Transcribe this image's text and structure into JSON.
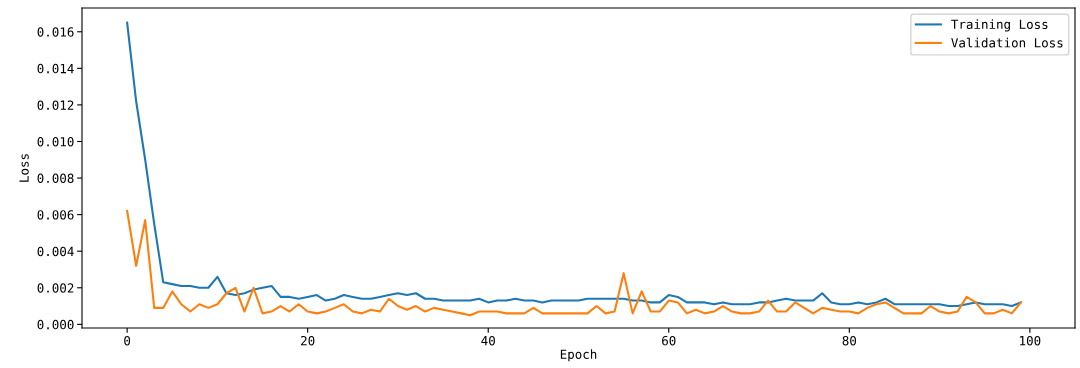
{
  "chart_data": {
    "type": "line",
    "xlabel": "Epoch",
    "ylabel": "Loss",
    "x": [
      0,
      1,
      2,
      3,
      4,
      5,
      6,
      7,
      8,
      9,
      10,
      11,
      12,
      13,
      14,
      15,
      16,
      17,
      18,
      19,
      20,
      21,
      22,
      23,
      24,
      25,
      26,
      27,
      28,
      29,
      30,
      31,
      32,
      33,
      34,
      35,
      36,
      37,
      38,
      39,
      40,
      41,
      42,
      43,
      44,
      45,
      46,
      47,
      48,
      49,
      50,
      51,
      52,
      53,
      54,
      55,
      56,
      57,
      58,
      59,
      60,
      61,
      62,
      63,
      64,
      65,
      66,
      67,
      68,
      69,
      70,
      71,
      72,
      73,
      74,
      75,
      76,
      77,
      78,
      79,
      80,
      81,
      82,
      83,
      84,
      85,
      86,
      87,
      88,
      89,
      90,
      91,
      92,
      93,
      94,
      95,
      96,
      97,
      98,
      99
    ],
    "series": [
      {
        "name": "Training Loss",
        "color": "#1f77b4",
        "values": [
          0.0165,
          0.0122,
          0.009,
          0.0055,
          0.0023,
          0.0022,
          0.0021,
          0.0021,
          0.002,
          0.002,
          0.0026,
          0.0017,
          0.0016,
          0.0017,
          0.0019,
          0.002,
          0.0021,
          0.0015,
          0.0015,
          0.0014,
          0.0015,
          0.0016,
          0.0013,
          0.0014,
          0.0016,
          0.0015,
          0.0014,
          0.0014,
          0.0015,
          0.0016,
          0.0017,
          0.0016,
          0.0017,
          0.0014,
          0.0014,
          0.0013,
          0.0013,
          0.0013,
          0.0013,
          0.0014,
          0.0012,
          0.0013,
          0.0013,
          0.0014,
          0.0013,
          0.0013,
          0.0012,
          0.0013,
          0.0013,
          0.0013,
          0.0013,
          0.0014,
          0.0014,
          0.0014,
          0.0014,
          0.0014,
          0.0013,
          0.0013,
          0.0012,
          0.0012,
          0.0016,
          0.0015,
          0.0012,
          0.0012,
          0.0012,
          0.0011,
          0.0012,
          0.0011,
          0.0011,
          0.0011,
          0.0012,
          0.0012,
          0.0013,
          0.0014,
          0.0013,
          0.0013,
          0.0013,
          0.0017,
          0.0012,
          0.0011,
          0.0011,
          0.0012,
          0.0011,
          0.0012,
          0.0014,
          0.0011,
          0.0011,
          0.0011,
          0.0011,
          0.0011,
          0.0011,
          0.001,
          0.001,
          0.0011,
          0.0012,
          0.0011,
          0.0011,
          0.0011,
          0.001,
          0.0012
        ]
      },
      {
        "name": "Validation Loss",
        "color": "#ff7f0e",
        "values": [
          0.0062,
          0.0032,
          0.0057,
          0.0009,
          0.0009,
          0.0018,
          0.0011,
          0.0007,
          0.0011,
          0.0009,
          0.0011,
          0.0017,
          0.002,
          0.0007,
          0.002,
          0.0006,
          0.0007,
          0.001,
          0.0007,
          0.0011,
          0.0007,
          0.0006,
          0.0007,
          0.0009,
          0.0011,
          0.0007,
          0.0006,
          0.0008,
          0.0007,
          0.0014,
          0.001,
          0.0008,
          0.001,
          0.0007,
          0.0009,
          0.0008,
          0.0007,
          0.0006,
          0.0005,
          0.0007,
          0.0007,
          0.0007,
          0.0006,
          0.0006,
          0.0006,
          0.0009,
          0.0006,
          0.0006,
          0.0006,
          0.0006,
          0.0006,
          0.0006,
          0.001,
          0.0006,
          0.0007,
          0.0028,
          0.0006,
          0.0018,
          0.0007,
          0.0007,
          0.0013,
          0.0012,
          0.0006,
          0.0008,
          0.0006,
          0.0007,
          0.001,
          0.0007,
          0.0006,
          0.0006,
          0.0007,
          0.0013,
          0.0007,
          0.0007,
          0.0012,
          0.0009,
          0.0006,
          0.0009,
          0.0008,
          0.0007,
          0.0007,
          0.0006,
          0.0009,
          0.0011,
          0.0012,
          0.0009,
          0.0006,
          0.0006,
          0.0006,
          0.001,
          0.0007,
          0.0006,
          0.0007,
          0.0015,
          0.0012,
          0.0006,
          0.0006,
          0.0008,
          0.0006,
          0.0012
        ]
      }
    ],
    "xlim": [
      -5,
      105
    ],
    "xticks": [
      0,
      20,
      40,
      60,
      80,
      100
    ],
    "ylim": [
      -0.0002,
      0.0173
    ],
    "yticks": [
      {
        "value": 0,
        "label": "0.000"
      },
      {
        "value": 0.002,
        "label": "0.002"
      },
      {
        "value": 0.004,
        "label": "0.004"
      },
      {
        "value": 0.006,
        "label": "0.006"
      },
      {
        "value": 0.008,
        "label": "0.008"
      },
      {
        "value": 0.01,
        "label": "0.010"
      },
      {
        "value": 0.012,
        "label": "0.012"
      },
      {
        "value": 0.014,
        "label": "0.014"
      },
      {
        "value": 0.016,
        "label": "0.016"
      }
    ],
    "legend": "top right",
    "grid": false,
    "marker": "none",
    "line_style": "solid"
  }
}
